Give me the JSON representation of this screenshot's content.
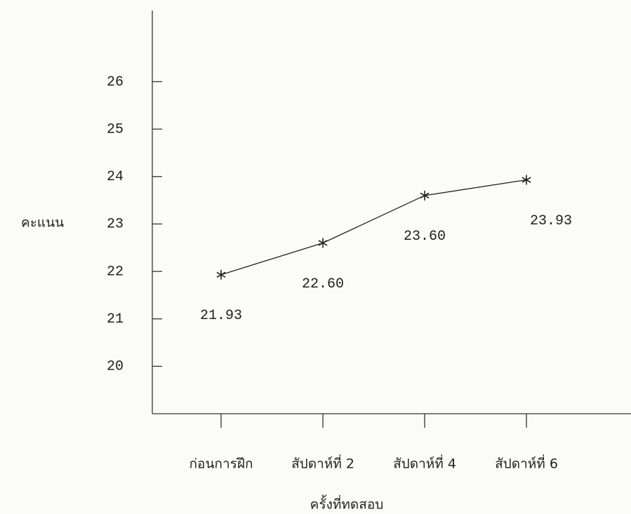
{
  "chart_data": {
    "type": "line",
    "y_label": "คะแนน",
    "x_label": "ครั้งที่ทดสอบ",
    "categories": [
      "ก่อนการฝึก",
      "สัปดาห์ที่ 2",
      "สัปดาห์ที่ 4",
      "สัปดาห์ที่ 6"
    ],
    "values": [
      21.93,
      22.6,
      23.6,
      23.93
    ],
    "value_labels": [
      "21.93",
      "22.60",
      "23.60",
      "23.93"
    ],
    "color": "#222222",
    "ylim": [
      19,
      27.5
    ],
    "yticks": [
      20,
      21,
      22,
      23,
      24,
      25,
      26
    ]
  }
}
